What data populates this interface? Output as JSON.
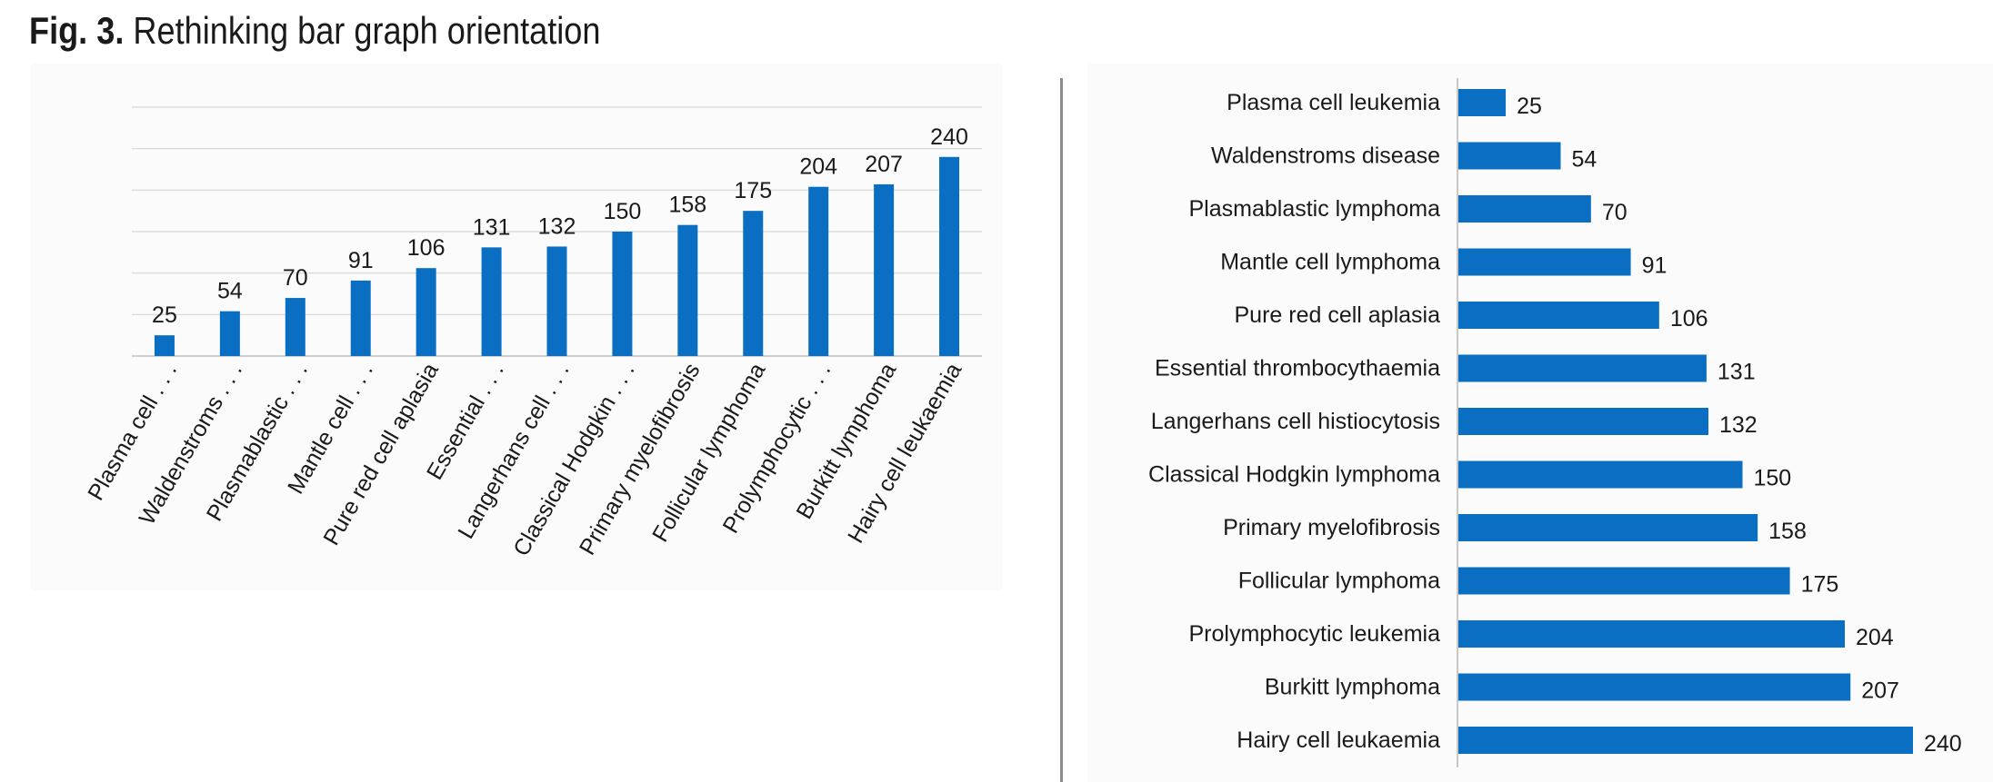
{
  "figure": {
    "label": "Fig. 3.",
    "title": "Rethinking bar graph orientation"
  },
  "chart_data": [
    {
      "type": "bar",
      "orientation": "vertical",
      "categories": [
        "Plasma cell leukemia",
        "Waldenstroms disease",
        "Plasmablastic lymphoma",
        "Mantle cell lymphoma",
        "Pure red cell aplasia",
        "Essential thrombocythaemia",
        "Langerhans cell histiocytosis",
        "Classical Hodgkin lymphoma",
        "Primary myelofibrosis",
        "Follicular lymphoma",
        "Prolymphocytic leukemia",
        "Burkitt lymphoma",
        "Hairy cell leukaemia"
      ],
      "tick_labels": [
        "Plasma cell . . .",
        "Waldenstroms . . .",
        "Plasmablastic . . .",
        "Mantle cell . . .",
        "Pure red cell aplasia",
        "Essential . . .",
        "Langerhans cell . . .",
        "Classical Hodgkin . . .",
        "Primary myelofibrosis",
        "Follicular lymphoma",
        "Prolymphocytic . . .",
        "Burkitt lymphoma",
        "Hairy cell leukaemia"
      ],
      "values": [
        25,
        54,
        70,
        91,
        106,
        131,
        132,
        150,
        158,
        175,
        204,
        207,
        240
      ],
      "title": "",
      "xlabel": "",
      "ylabel": "",
      "ylim": [
        0,
        300
      ],
      "grid": true,
      "data_labels": true,
      "bar_color": "#0a6fc2"
    },
    {
      "type": "bar",
      "orientation": "horizontal",
      "categories": [
        "Plasma cell leukemia",
        "Waldenstroms disease",
        "Plasmablastic lymphoma",
        "Mantle cell lymphoma",
        "Pure red cell aplasia",
        "Essential thrombocythaemia",
        "Langerhans cell histiocytosis",
        "Classical Hodgkin lymphoma",
        "Primary myelofibrosis",
        "Follicular lymphoma",
        "Prolymphocytic leukemia",
        "Burkitt lymphoma",
        "Hairy cell leukaemia"
      ],
      "values": [
        25,
        54,
        70,
        91,
        106,
        131,
        132,
        150,
        158,
        175,
        204,
        207,
        240
      ],
      "title": "",
      "xlabel": "",
      "ylabel": "",
      "xlim": [
        0,
        240
      ],
      "grid": false,
      "data_labels": true,
      "bar_color": "#0a6fc2"
    }
  ]
}
